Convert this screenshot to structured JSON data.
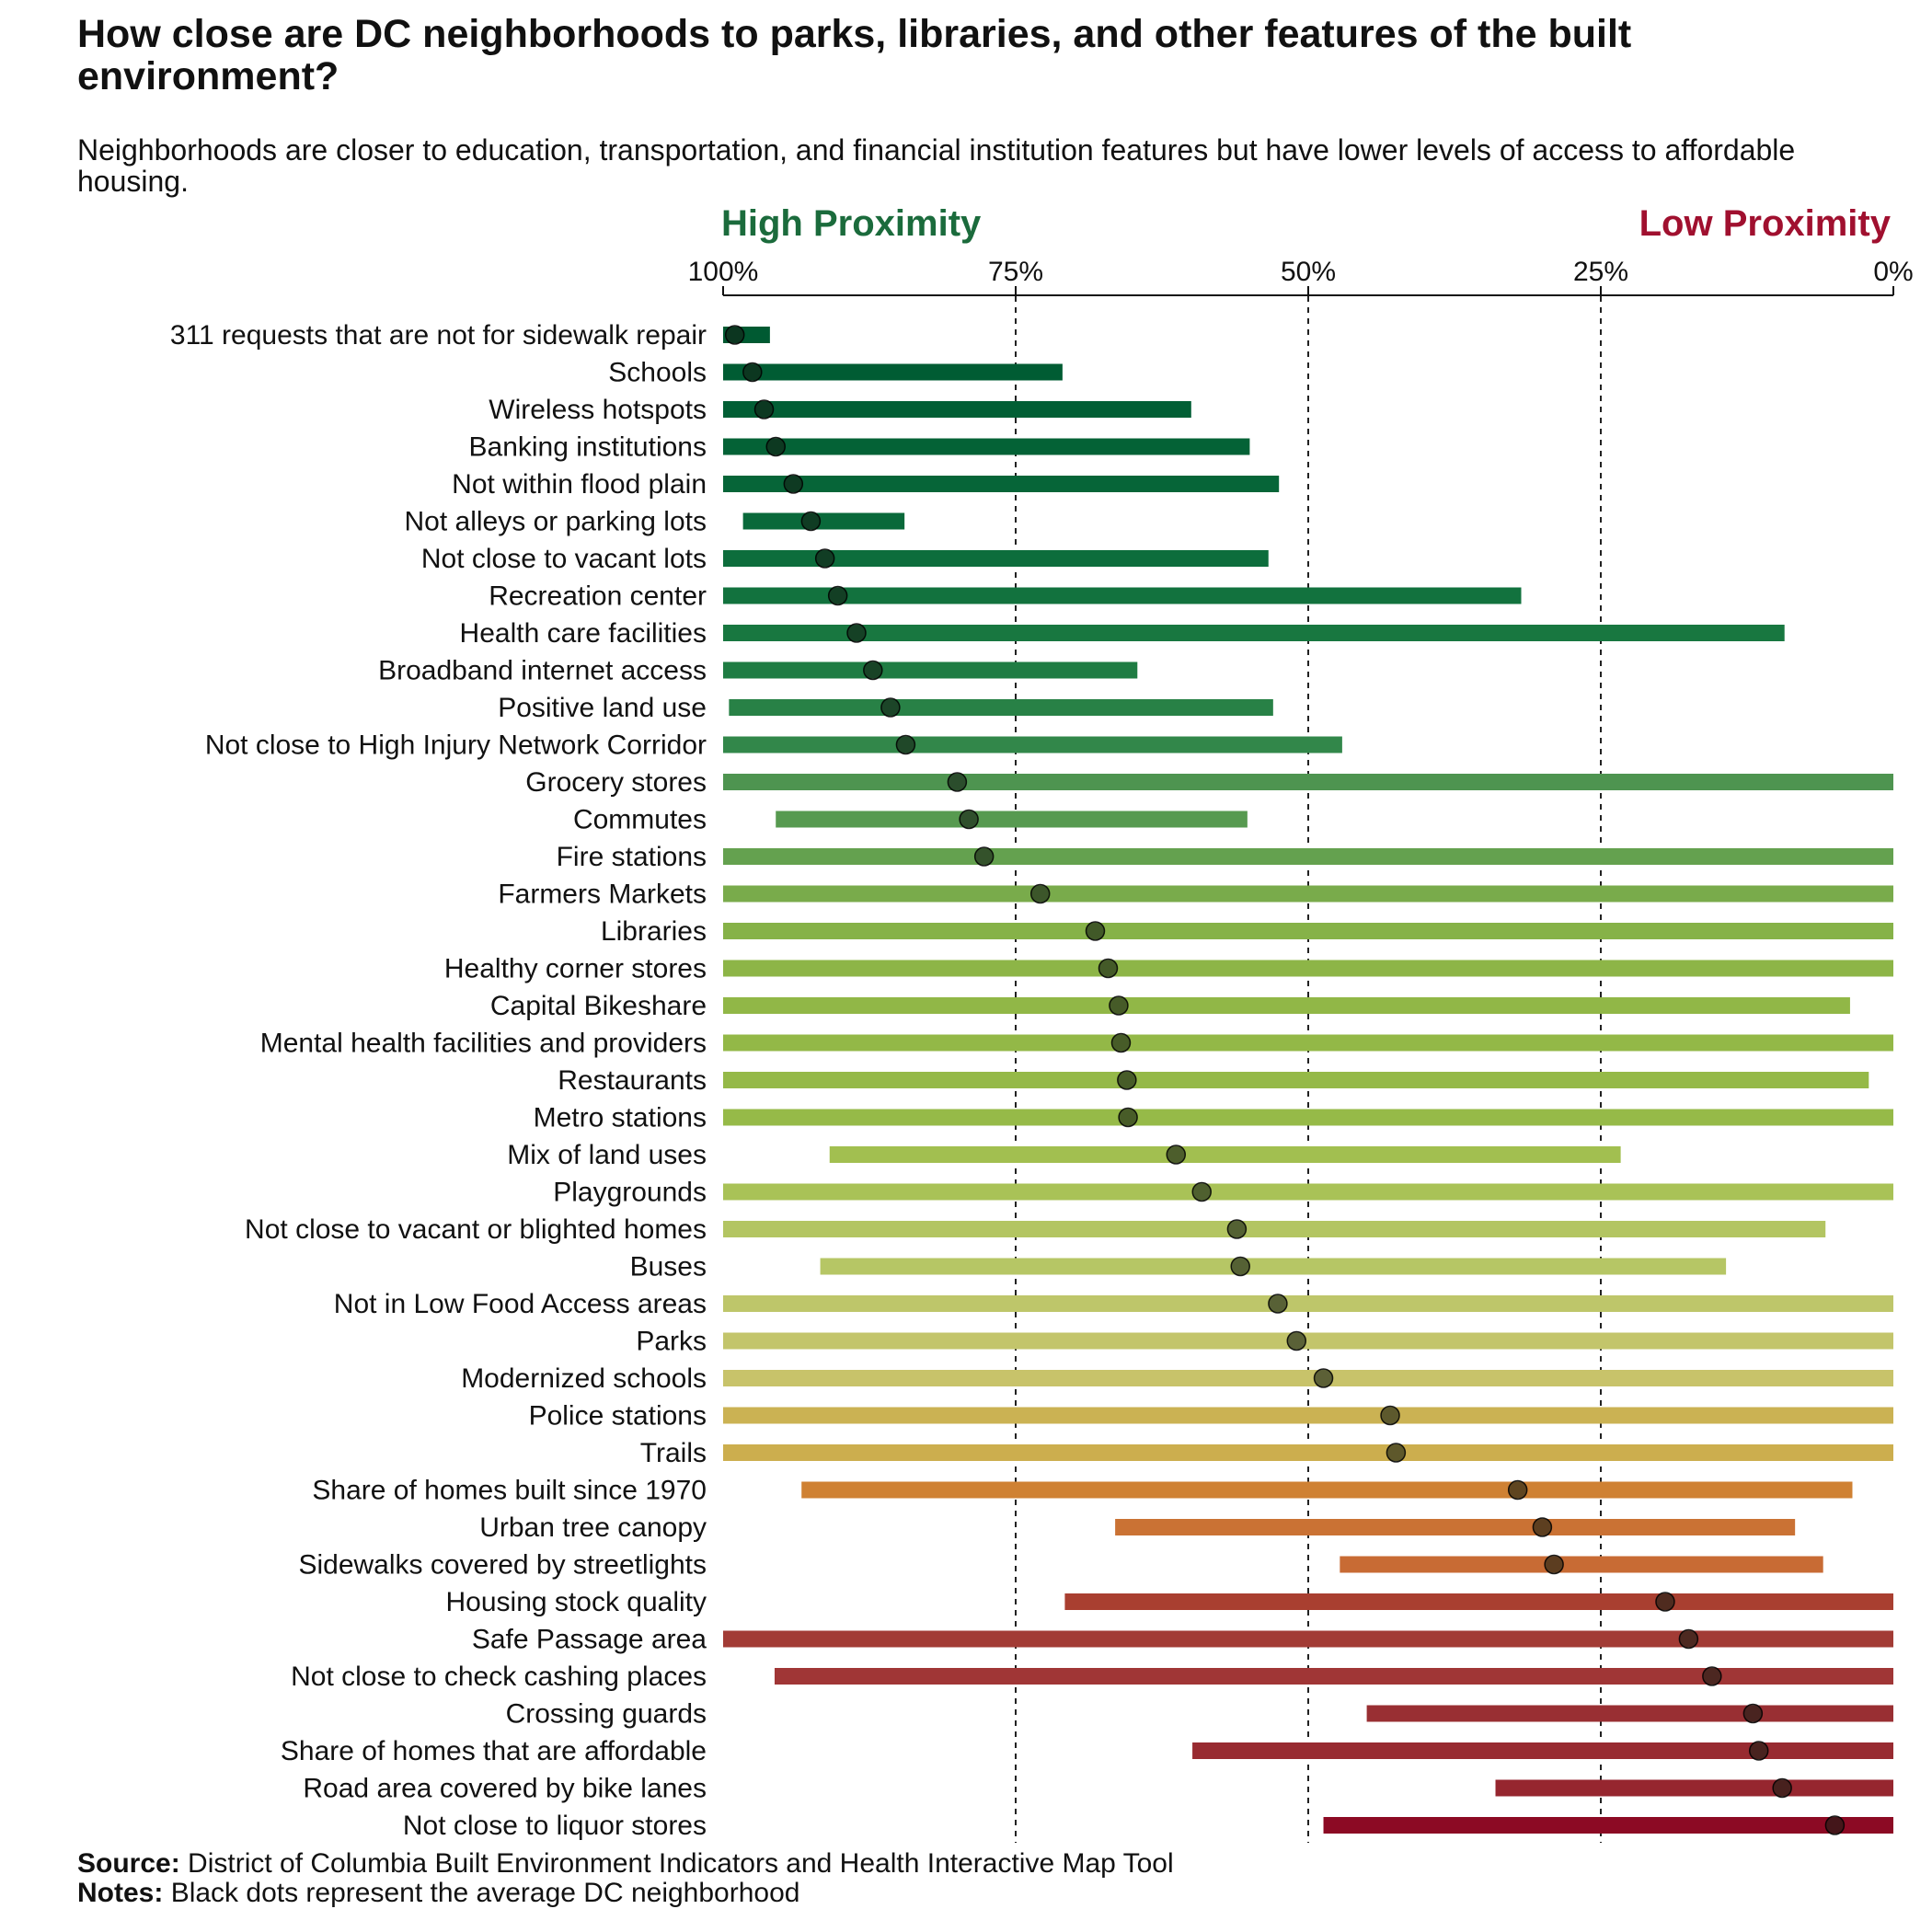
{
  "chart_data": {
    "type": "range-dot",
    "title": "How close are DC neighborhoods to parks, libraries, and other features of the built environment?",
    "subtitle": "Neighborhoods are closer to education, transportation, and financial institution features but have lower levels of access to affordable housing.",
    "axis": {
      "reversed": true,
      "range": [
        0,
        100
      ],
      "ticks": [
        100,
        75,
        50,
        25,
        0
      ],
      "tick_labels": [
        "100%",
        "75%",
        "50%",
        "25%",
        "0%"
      ],
      "gridlines": [
        75,
        50,
        25
      ],
      "gridline_style": "dashed"
    },
    "left_heading": {
      "text": "High Proximity",
      "color": "#1b6b3c"
    },
    "right_heading": {
      "text": "Low Proximity",
      "color": "#a0102f"
    },
    "series": [
      {
        "name": "Range across neighborhoods",
        "mark": "bar"
      },
      {
        "name": "Average DC neighborhood",
        "mark": "dot"
      }
    ],
    "rows": [
      {
        "label": "311 requests that are not for sidewalk repair",
        "min": 96,
        "max": 100,
        "avg": 99,
        "color": "#005a32"
      },
      {
        "label": "Schools",
        "min": 71,
        "max": 100,
        "avg": 97.5,
        "color": "#005c33"
      },
      {
        "label": "Wireless hotspots",
        "min": 60,
        "max": 100,
        "avg": 96.5,
        "color": "#025f35"
      },
      {
        "label": "Banking institutions",
        "min": 55,
        "max": 100,
        "avg": 95.5,
        "color": "#046236"
      },
      {
        "label": "Not within flood plain",
        "min": 52.5,
        "max": 100,
        "avg": 94,
        "color": "#066538"
      },
      {
        "label": "Not alleys or parking lots",
        "min": 84.5,
        "max": 98.3,
        "avg": 92.5,
        "color": "#09693a"
      },
      {
        "label": "Not close to vacant lots",
        "min": 53.4,
        "max": 100,
        "avg": 91.3,
        "color": "#0d6d3c"
      },
      {
        "label": "Recreation center",
        "min": 31.8,
        "max": 100,
        "avg": 90.2,
        "color": "#12723e"
      },
      {
        "label": "Health care facilities",
        "min": 9.3,
        "max": 100,
        "avg": 88.6,
        "color": "#187740"
      },
      {
        "label": "Broadband internet access",
        "min": 64.6,
        "max": 100,
        "avg": 87.2,
        "color": "#1f7c43"
      },
      {
        "label": "Positive land use",
        "min": 53,
        "max": 99.5,
        "avg": 85.7,
        "color": "#288146"
      },
      {
        "label": "Not close to High Injury Network Corridor",
        "min": 47.1,
        "max": 100,
        "avg": 84.4,
        "color": "#32874a"
      },
      {
        "label": "Grocery stores",
        "min": 0,
        "max": 100,
        "avg": 80,
        "color": "#4e9450"
      },
      {
        "label": "Commutes",
        "min": 55.2,
        "max": 95.5,
        "avg": 79,
        "color": "#579a50"
      },
      {
        "label": "Fire stations",
        "min": 0,
        "max": 100,
        "avg": 77.7,
        "color": "#64a14f"
      },
      {
        "label": "Farmers Markets",
        "min": 0,
        "max": 100,
        "avg": 72.9,
        "color": "#79ab4b"
      },
      {
        "label": "Libraries",
        "min": 0,
        "max": 100,
        "avg": 68.2,
        "color": "#86b248"
      },
      {
        "label": "Healthy corner stores",
        "min": 0,
        "max": 100,
        "avg": 67.1,
        "color": "#8db547"
      },
      {
        "label": "Capital Bikeshare",
        "min": 3.7,
        "max": 100,
        "avg": 66.2,
        "color": "#91b747"
      },
      {
        "label": "Mental health facilities and providers",
        "min": 0,
        "max": 100,
        "avg": 66,
        "color": "#93b847"
      },
      {
        "label": "Restaurants",
        "min": 2.1,
        "max": 100,
        "avg": 65.5,
        "color": "#95b948"
      },
      {
        "label": "Metro stations",
        "min": 0,
        "max": 100,
        "avg": 65.4,
        "color": "#96ba48"
      },
      {
        "label": "Mix of land uses",
        "min": 23.3,
        "max": 90.9,
        "avg": 61.3,
        "color": "#a2bf50"
      },
      {
        "label": "Playgrounds",
        "min": 0,
        "max": 100,
        "avg": 59.1,
        "color": "#a9c257"
      },
      {
        "label": "Not close to vacant or blighted homes",
        "min": 5.8,
        "max": 100,
        "avg": 56.1,
        "color": "#b3c562"
      },
      {
        "label": "Buses",
        "min": 14.3,
        "max": 91.7,
        "avg": 55.8,
        "color": "#b6c665"
      },
      {
        "label": "Not in Low Food Access areas",
        "min": 0,
        "max": 100,
        "avg": 52.6,
        "color": "#bec66a"
      },
      {
        "label": "Parks",
        "min": 0,
        "max": 100,
        "avg": 51,
        "color": "#c3c56b"
      },
      {
        "label": "Modernized schools",
        "min": 0,
        "max": 100,
        "avg": 48.7,
        "color": "#c8c36a"
      },
      {
        "label": "Police stations",
        "min": 0,
        "max": 100,
        "avg": 43,
        "color": "#cbb253"
      },
      {
        "label": "Trails",
        "min": 0,
        "max": 100,
        "avg": 42.5,
        "color": "#ccae4e"
      },
      {
        "label": "Share of homes built since 1970",
        "min": 3.5,
        "max": 93.3,
        "avg": 32.1,
        "color": "#cf8133"
      },
      {
        "label": "Urban tree canopy",
        "min": 8.4,
        "max": 66.5,
        "avg": 30,
        "color": "#ca7234"
      },
      {
        "label": "Sidewalks covered by streetlights",
        "min": 6,
        "max": 47.3,
        "avg": 29,
        "color": "#c86b34"
      },
      {
        "label": "Housing stock quality",
        "min": 0,
        "max": 70.8,
        "avg": 19.5,
        "color": "#a93f30"
      },
      {
        "label": "Safe Passage area",
        "min": 0,
        "max": 100,
        "avg": 17.5,
        "color": "#a23b35"
      },
      {
        "label": "Not close to check cashing places",
        "min": 0,
        "max": 95.6,
        "avg": 15.5,
        "color": "#a03636"
      },
      {
        "label": "Crossing guards",
        "min": 0,
        "max": 45,
        "avg": 12,
        "color": "#992f33"
      },
      {
        "label": "Share of homes that are affordable",
        "min": 0,
        "max": 59.9,
        "avg": 11.5,
        "color": "#982b31"
      },
      {
        "label": "Road area covered by bike lanes",
        "min": 0,
        "max": 34,
        "avg": 9.5,
        "color": "#96262f"
      },
      {
        "label": "Not close to liquor stores",
        "min": 0,
        "max": 48.7,
        "avg": 5,
        "color": "#8c0a24"
      }
    ]
  },
  "footer": {
    "source_label": "Source:",
    "source_text": "District of Columbia Built Environment Indicators and Health Interactive Map Tool",
    "notes_label": "Notes:",
    "notes_text": "Black dots represent the average DC neighborhood"
  }
}
